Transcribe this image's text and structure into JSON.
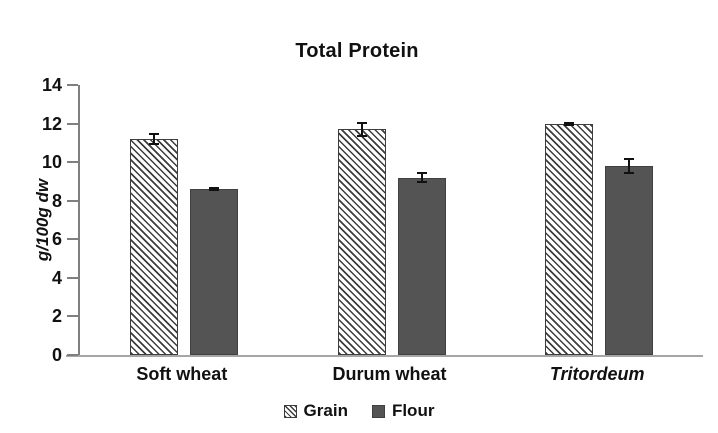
{
  "chart_data": {
    "type": "bar",
    "title": "Total Protein",
    "ylabel": "g/100g dw",
    "xlabel": "",
    "ylim": [
      0,
      14
    ],
    "yticks": [
      0,
      2,
      4,
      6,
      8,
      10,
      12,
      14
    ],
    "grid": false,
    "legend_position": "bottom-center",
    "categories": [
      "Soft wheat",
      "Durum wheat",
      "Tritordeum"
    ],
    "categories_italic": [
      false,
      false,
      true
    ],
    "series": [
      {
        "name": "Grain",
        "style": "hatched",
        "values": [
          11.2,
          11.7,
          12.0
        ],
        "errors": [
          0.3,
          0.4,
          0.1
        ]
      },
      {
        "name": "Flour",
        "style": "solid",
        "values": [
          8.6,
          9.2,
          9.8
        ],
        "errors": [
          0.1,
          0.3,
          0.4
        ]
      }
    ]
  },
  "colors": {
    "flour_fill": "#545454",
    "hatch_line": "#3d3d3d",
    "y_axis_line": "#7f7f7f",
    "baseline": "#a6a6a6",
    "error_bar": "#111111",
    "text": "#111111",
    "background": "#ffffff"
  },
  "legend": {
    "items": [
      {
        "label": "Grain",
        "swatch": "hatched-square-icon"
      },
      {
        "label": "Flour",
        "swatch": "solid-square-icon"
      }
    ]
  }
}
